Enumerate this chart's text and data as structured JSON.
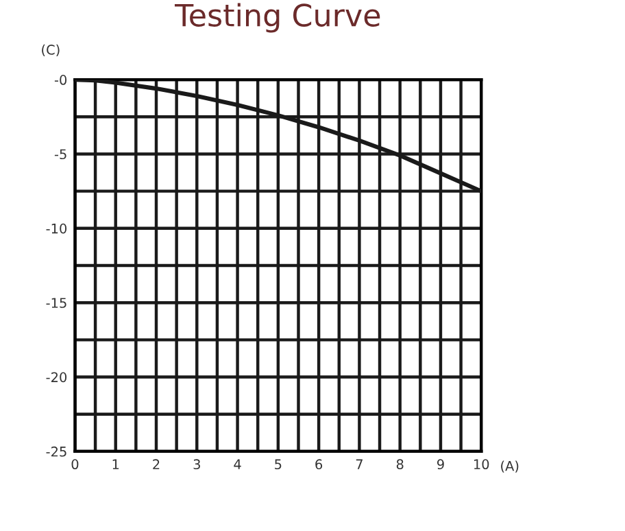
{
  "chart_data": {
    "type": "line",
    "title": "Testing Curve",
    "xlabel": "(A)",
    "ylabel": "(C)",
    "x": [
      0,
      0.5,
      1,
      2,
      3,
      4,
      5,
      6,
      7,
      8,
      9,
      10
    ],
    "series": [
      {
        "color": "#1a1a1a",
        "values": [
          0,
          -0.05,
          -0.2,
          -0.6,
          -1.1,
          -1.7,
          -2.4,
          -3.2,
          -4.1,
          -5.1,
          -6.3,
          -7.5
        ]
      }
    ],
    "xlim": [
      0,
      10
    ],
    "ylim": [
      -25,
      0
    ],
    "xticks": [
      0,
      {
        "value": 0.5,
        "label": null
      },
      1,
      {
        "value": 1.5,
        "label": null
      },
      2,
      {
        "value": 2.5,
        "label": null
      },
      3,
      {
        "value": 3.5,
        "label": null
      },
      4,
      {
        "value": 4.5,
        "label": null
      },
      5,
      {
        "value": 5.5,
        "label": null
      },
      6,
      {
        "value": 6.5,
        "label": null
      },
      7,
      {
        "value": 7.5,
        "label": null
      },
      8,
      {
        "value": 8.5,
        "label": null
      },
      9,
      {
        "value": 9.5,
        "label": null
      },
      10
    ],
    "yticks": [
      -25,
      {
        "value": -22.5,
        "label": null
      },
      -20,
      {
        "value": -17.5,
        "label": null
      },
      -15,
      {
        "value": -12.5,
        "label": null
      },
      -10,
      {
        "value": -7.5,
        "label": null
      },
      -5,
      {
        "value": -2.5,
        "label": null
      },
      {
        "value": 0,
        "label": "-0"
      }
    ],
    "grid": true,
    "marker": "none",
    "line_style": "solid"
  }
}
